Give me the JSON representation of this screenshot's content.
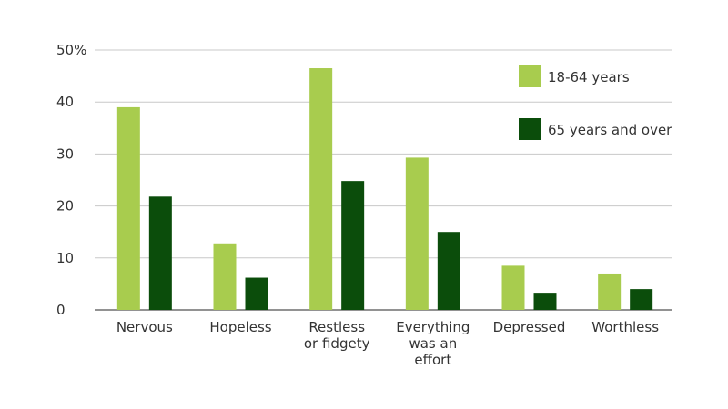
{
  "chart_data": {
    "type": "bar",
    "title": "",
    "xlabel": "",
    "ylabel": "",
    "ylim": [
      0,
      50
    ],
    "yticks": [
      "0",
      "10",
      "20",
      "30",
      "40",
      "50%"
    ],
    "grid": true,
    "legend_position": "top-right",
    "categories": [
      [
        "Nervous"
      ],
      [
        "Hopeless"
      ],
      [
        "Restless",
        "or fidgety"
      ],
      [
        "Everything",
        "was an",
        "effort"
      ],
      [
        "Depressed"
      ],
      [
        "Worthless"
      ]
    ],
    "series": [
      {
        "name": "18-64 years",
        "color": "#a8cc4e",
        "values": [
          39,
          12.8,
          46.5,
          29.3,
          8.5,
          7
        ]
      },
      {
        "name": "65 years and over",
        "color": "#0b4d0b",
        "values": [
          21.8,
          6.2,
          24.8,
          15,
          3.3,
          4
        ]
      }
    ]
  }
}
